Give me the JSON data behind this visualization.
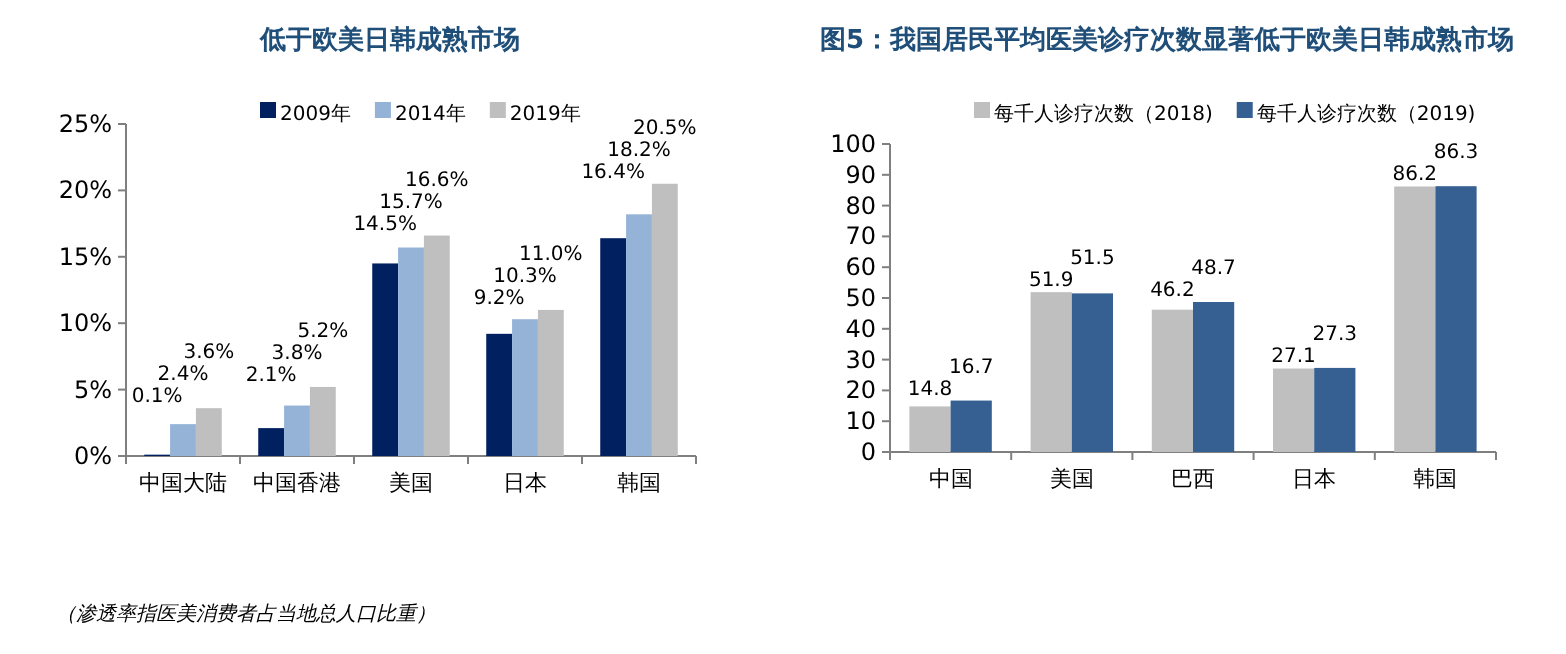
{
  "chart_data": [
    {
      "type": "bar",
      "title": "低于欧美日韩成熟市场",
      "categories": [
        "中国大陆",
        "中国香港",
        "美国",
        "日本",
        "韩国"
      ],
      "series": [
        {
          "name": "2009年",
          "color": "#002060",
          "values": [
            0.1,
            2.1,
            14.5,
            9.2,
            16.4
          ],
          "value_labels": [
            "0.1%",
            "2.1%",
            "14.5%",
            "9.2%",
            "16.4%"
          ]
        },
        {
          "name": "2014年",
          "color": "#95b3d7",
          "values": [
            2.4,
            3.8,
            15.7,
            10.3,
            18.2
          ],
          "value_labels": [
            "2.4%",
            "3.8%",
            "15.7%",
            "10.3%",
            "18.2%"
          ]
        },
        {
          "name": "2019年",
          "color": "#bfbfbf",
          "values": [
            3.6,
            5.2,
            16.6,
            11.0,
            20.5
          ],
          "value_labels": [
            "3.6%",
            "5.2%",
            "16.6%",
            "11.0%",
            "20.5%"
          ]
        }
      ],
      "ylim": [
        0,
        25
      ],
      "yticks": [
        {
          "value": 0,
          "label": "0%"
        },
        {
          "value": 5,
          "label": "5%"
        },
        {
          "value": 10,
          "label": "10%"
        },
        {
          "value": 15,
          "label": "15%"
        },
        {
          "value": 20,
          "label": "20%"
        },
        {
          "value": 25,
          "label": "25%"
        }
      ],
      "legend": "top",
      "annotations": [
        "（渗透率指医美消费者占当地总人口比重）"
      ]
    },
    {
      "type": "bar",
      "title": "图5：我国居民平均医美诊疗次数显著低于欧美日韩成熟市场",
      "categories": [
        "中国",
        "美国",
        "巴西",
        "日本",
        "韩国"
      ],
      "series": [
        {
          "name": "每千人诊疗次数（2018)",
          "color": "#bfbfbf",
          "values": [
            14.8,
            51.9,
            46.2,
            27.1,
            86.2
          ]
        },
        {
          "name": "每千人诊疗次数（2019)",
          "color": "#376092",
          "values": [
            16.7,
            51.5,
            48.7,
            27.3,
            86.3
          ]
        }
      ],
      "ylim": [
        0,
        100
      ],
      "yticks": [
        0,
        10,
        20,
        30,
        40,
        50,
        60,
        70,
        80,
        90,
        100
      ],
      "legend": "top",
      "data_labels": true
    }
  ]
}
